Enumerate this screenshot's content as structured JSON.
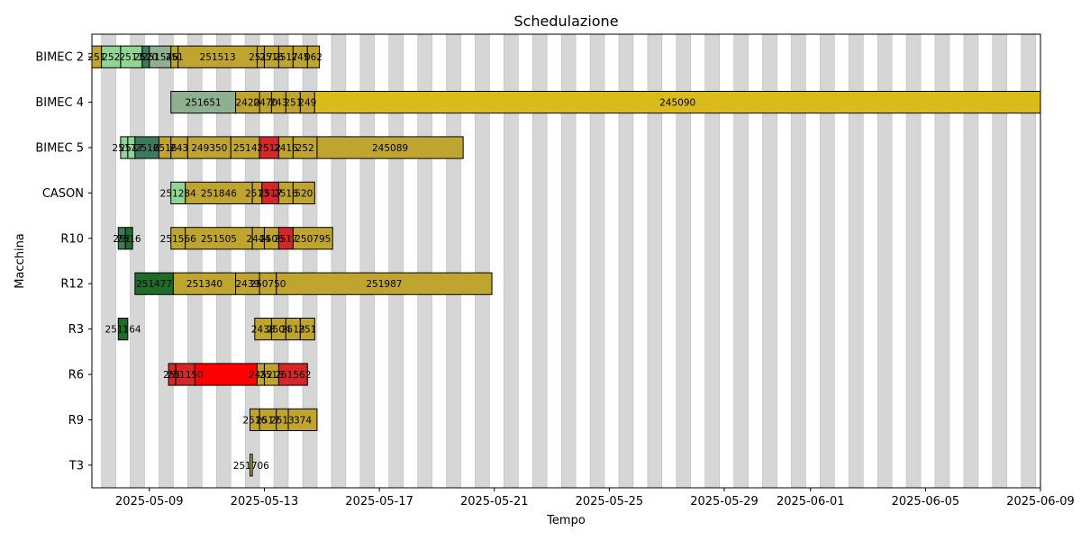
{
  "chart_data": {
    "type": "gantt",
    "title": "Schedulazione",
    "xlabel": "Tempo",
    "ylabel": "Macchina",
    "x_ticks": [
      "2025-05-09",
      "2025-05-13",
      "2025-05-17",
      "2025-05-21",
      "2025-05-25",
      "2025-05-29",
      "2025-06-01",
      "2025-06-05",
      "2025-06-09"
    ],
    "xlim": [
      "2025-05-07T00:00",
      "2025-06-09T00:00"
    ],
    "grid": "vertical shaded bands",
    "machines": [
      "BIMEC 2",
      "BIMEC 4",
      "BIMEC 5",
      "CASON",
      "R10",
      "R12",
      "R3",
      "R6",
      "R9",
      "T3"
    ],
    "colors": {
      "band": "#d6d6d6",
      "band_edge": "#bdbdbd",
      "yellow": "#bfa530",
      "gold": "#d9bc1c",
      "red": "#d62728",
      "bright_red": "#ff0000",
      "light_green": "#8fd694",
      "sage": "#8fb08f",
      "teal": "#3d7a5e",
      "dark_green": "#1e6b2a",
      "outline": "#000000"
    },
    "tasks": [
      {
        "machine": "BIMEC 2",
        "label": "251",
        "start": "2025-05-07T00:00",
        "end": "2025-05-07T08:00",
        "color": "yellow"
      },
      {
        "machine": "BIMEC 2",
        "label": "252",
        "start": "2025-05-07T08:00",
        "end": "2025-05-08T00:00",
        "color": "light_green"
      },
      {
        "machine": "BIMEC 2",
        "label": "2511",
        "start": "2025-05-08T00:00",
        "end": "2025-05-08T18:00",
        "color": "light_green"
      },
      {
        "machine": "BIMEC 2",
        "label": "2520",
        "start": "2025-05-08T18:00",
        "end": "2025-05-09T00:00",
        "color": "teal"
      },
      {
        "machine": "BIMEC 2",
        "label": "251546",
        "start": "2025-05-09T00:00",
        "end": "2025-05-09T18:00",
        "color": "sage"
      },
      {
        "machine": "BIMEC 2",
        "label": "251",
        "start": "2025-05-09T18:00",
        "end": "2025-05-10T00:00",
        "color": "yellow"
      },
      {
        "machine": "BIMEC 2",
        "label": "251513",
        "start": "2025-05-10T00:00",
        "end": "2025-05-12T18:00",
        "color": "yellow"
      },
      {
        "machine": "BIMEC 2",
        "label": "2517",
        "start": "2025-05-12T18:00",
        "end": "2025-05-13T00:00",
        "color": "yellow"
      },
      {
        "machine": "BIMEC 2",
        "label": "2516",
        "start": "2025-05-13T00:00",
        "end": "2025-05-13T12:00",
        "color": "yellow"
      },
      {
        "machine": "BIMEC 2",
        "label": "2517",
        "start": "2025-05-13T12:00",
        "end": "2025-05-14T00:00",
        "color": "yellow"
      },
      {
        "machine": "BIMEC 2",
        "label": "245",
        "start": "2025-05-14T00:00",
        "end": "2025-05-14T12:00",
        "color": "yellow"
      },
      {
        "machine": "BIMEC 2",
        "label": "062",
        "start": "2025-05-14T12:00",
        "end": "2025-05-14T22:00",
        "color": "yellow"
      },
      {
        "machine": "BIMEC 4",
        "label": "251651",
        "start": "2025-05-09T18:00",
        "end": "2025-05-12T00:00",
        "color": "sage"
      },
      {
        "machine": "BIMEC 4",
        "label": "2420",
        "start": "2025-05-12T00:00",
        "end": "2025-05-12T20:00",
        "color": "yellow"
      },
      {
        "machine": "BIMEC 4",
        "label": "2470",
        "start": "2025-05-12T20:00",
        "end": "2025-05-13T06:00",
        "color": "yellow"
      },
      {
        "machine": "BIMEC 4",
        "label": "243",
        "start": "2025-05-13T06:00",
        "end": "2025-05-13T18:00",
        "color": "yellow"
      },
      {
        "machine": "BIMEC 4",
        "label": "251",
        "start": "2025-05-13T18:00",
        "end": "2025-05-14T06:00",
        "color": "yellow"
      },
      {
        "machine": "BIMEC 4",
        "label": "249",
        "start": "2025-05-14T06:00",
        "end": "2025-05-14T18:00",
        "color": "yellow"
      },
      {
        "machine": "BIMEC 4",
        "label": "245090",
        "start": "2025-05-14T18:00",
        "end": "2025-06-09T00:00",
        "color": "gold"
      },
      {
        "machine": "BIMEC 5",
        "label": "2517",
        "start": "2025-05-08T00:00",
        "end": "2025-05-08T06:00",
        "color": "light_green"
      },
      {
        "machine": "BIMEC 5",
        "label": "2517",
        "start": "2025-05-08T06:00",
        "end": "2025-05-08T12:00",
        "color": "light_green"
      },
      {
        "machine": "BIMEC 5",
        "label": "2516",
        "start": "2025-05-08T12:00",
        "end": "2025-05-09T08:00",
        "color": "teal"
      },
      {
        "machine": "BIMEC 5",
        "label": "2516",
        "start": "2025-05-09T08:00",
        "end": "2025-05-09T18:00",
        "color": "yellow"
      },
      {
        "machine": "BIMEC 5",
        "label": "243",
        "start": "2025-05-09T18:00",
        "end": "2025-05-10T08:00",
        "color": "yellow"
      },
      {
        "machine": "BIMEC 5",
        "label": "249350",
        "start": "2025-05-10T08:00",
        "end": "2025-05-11T20:00",
        "color": "yellow"
      },
      {
        "machine": "BIMEC 5",
        "label": "2514",
        "start": "2025-05-11T20:00",
        "end": "2025-05-12T20:00",
        "color": "yellow"
      },
      {
        "machine": "BIMEC 5",
        "label": "2512",
        "start": "2025-05-12T20:00",
        "end": "2025-05-13T12:00",
        "color": "red"
      },
      {
        "machine": "BIMEC 5",
        "label": "2416",
        "start": "2025-05-13T12:00",
        "end": "2025-05-14T00:00",
        "color": "yellow"
      },
      {
        "machine": "BIMEC 5",
        "label": "252",
        "start": "2025-05-14T00:00",
        "end": "2025-05-14T20:00",
        "color": "yellow"
      },
      {
        "machine": "BIMEC 5",
        "label": "245089",
        "start": "2025-05-14T20:00",
        "end": "2025-05-19T22:00",
        "color": "yellow"
      },
      {
        "machine": "CASON",
        "label": "251284",
        "start": "2025-05-09T18:00",
        "end": "2025-05-10T06:00",
        "color": "light_green"
      },
      {
        "machine": "CASON",
        "label": "251846",
        "start": "2025-05-10T06:00",
        "end": "2025-05-12T14:00",
        "color": "yellow"
      },
      {
        "machine": "CASON",
        "label": "2513",
        "start": "2025-05-12T14:00",
        "end": "2025-05-12T22:00",
        "color": "yellow"
      },
      {
        "machine": "CASON",
        "label": "2517",
        "start": "2025-05-12T22:00",
        "end": "2025-05-13T12:00",
        "color": "red"
      },
      {
        "machine": "CASON",
        "label": "2516",
        "start": "2025-05-13T12:00",
        "end": "2025-05-14T00:00",
        "color": "yellow"
      },
      {
        "machine": "CASON",
        "label": "520",
        "start": "2025-05-14T00:00",
        "end": "2025-05-14T18:00",
        "color": "yellow"
      },
      {
        "machine": "R10",
        "label": "251",
        "start": "2025-05-07T22:00",
        "end": "2025-05-08T04:00",
        "color": "teal"
      },
      {
        "machine": "R10",
        "label": "2516",
        "start": "2025-05-08T04:00",
        "end": "2025-05-08T10:00",
        "color": "dark_green"
      },
      {
        "machine": "R10",
        "label": "251566",
        "start": "2025-05-09T18:00",
        "end": "2025-05-10T06:00",
        "color": "yellow"
      },
      {
        "machine": "R10",
        "label": "251505",
        "start": "2025-05-10T06:00",
        "end": "2025-05-12T14:00",
        "color": "yellow"
      },
      {
        "machine": "R10",
        "label": "2444",
        "start": "2025-05-12T14:00",
        "end": "2025-05-13T00:00",
        "color": "yellow"
      },
      {
        "machine": "R10",
        "label": "2506",
        "start": "2025-05-13T00:00",
        "end": "2025-05-13T12:00",
        "color": "yellow"
      },
      {
        "machine": "R10",
        "label": "2517",
        "start": "2025-05-13T12:00",
        "end": "2025-05-14T00:00",
        "color": "red"
      },
      {
        "machine": "R10",
        "label": "250795",
        "start": "2025-05-14T00:00",
        "end": "2025-05-15T09:00",
        "color": "yellow"
      },
      {
        "machine": "R12",
        "label": "251477",
        "start": "2025-05-08T12:00",
        "end": "2025-05-09T20:00",
        "color": "dark_green"
      },
      {
        "machine": "R12",
        "label": "251340",
        "start": "2025-05-09T20:00",
        "end": "2025-05-12T00:00",
        "color": "yellow"
      },
      {
        "machine": "R12",
        "label": "2439",
        "start": "2025-05-12T00:00",
        "end": "2025-05-12T20:00",
        "color": "yellow"
      },
      {
        "machine": "R12",
        "label": "250750",
        "start": "2025-05-12T20:00",
        "end": "2025-05-13T10:00",
        "color": "yellow"
      },
      {
        "machine": "R12",
        "label": "251987",
        "start": "2025-05-13T10:00",
        "end": "2025-05-20T22:00",
        "color": "yellow"
      },
      {
        "machine": "R3",
        "label": "251164",
        "start": "2025-05-07T22:00",
        "end": "2025-05-08T06:00",
        "color": "dark_green"
      },
      {
        "machine": "R3",
        "label": "2438",
        "start": "2025-05-12T16:00",
        "end": "2025-05-13T06:00",
        "color": "yellow"
      },
      {
        "machine": "R3",
        "label": "2504",
        "start": "2025-05-13T06:00",
        "end": "2025-05-13T18:00",
        "color": "yellow"
      },
      {
        "machine": "R3",
        "label": "2513",
        "start": "2025-05-13T18:00",
        "end": "2025-05-14T06:00",
        "color": "yellow"
      },
      {
        "machine": "R3",
        "label": "251",
        "start": "2025-05-14T06:00",
        "end": "2025-05-14T18:00",
        "color": "yellow"
      },
      {
        "machine": "R6",
        "label": "251",
        "start": "2025-05-09T16:00",
        "end": "2025-05-09T22:00",
        "color": "red"
      },
      {
        "machine": "R6",
        "label": "251150",
        "start": "2025-05-09T22:00",
        "end": "2025-05-10T14:00",
        "color": "red"
      },
      {
        "machine": "R6",
        "label": "",
        "start": "2025-05-10T14:00",
        "end": "2025-05-12T18:00",
        "color": "bright_red"
      },
      {
        "machine": "R6",
        "label": "2452",
        "start": "2025-05-12T18:00",
        "end": "2025-05-13T00:00",
        "color": "yellow"
      },
      {
        "machine": "R6",
        "label": "2515",
        "start": "2025-05-13T00:00",
        "end": "2025-05-13T12:00",
        "color": "yellow"
      },
      {
        "machine": "R6",
        "label": "251562",
        "start": "2025-05-13T12:00",
        "end": "2025-05-14T12:00",
        "color": "red"
      },
      {
        "machine": "R9",
        "label": "2516",
        "start": "2025-05-12T12:00",
        "end": "2025-05-12T20:00",
        "color": "yellow"
      },
      {
        "machine": "R9",
        "label": "2517",
        "start": "2025-05-12T20:00",
        "end": "2025-05-13T10:00",
        "color": "yellow"
      },
      {
        "machine": "R9",
        "label": "2513",
        "start": "2025-05-13T10:00",
        "end": "2025-05-13T20:00",
        "color": "yellow"
      },
      {
        "machine": "R9",
        "label": "374",
        "start": "2025-05-13T20:00",
        "end": "2025-05-14T20:00",
        "color": "yellow"
      },
      {
        "machine": "T3",
        "label": "251706",
        "start": "2025-05-12T12:00",
        "end": "2025-05-12T14:00",
        "color": "yellow"
      }
    ]
  }
}
